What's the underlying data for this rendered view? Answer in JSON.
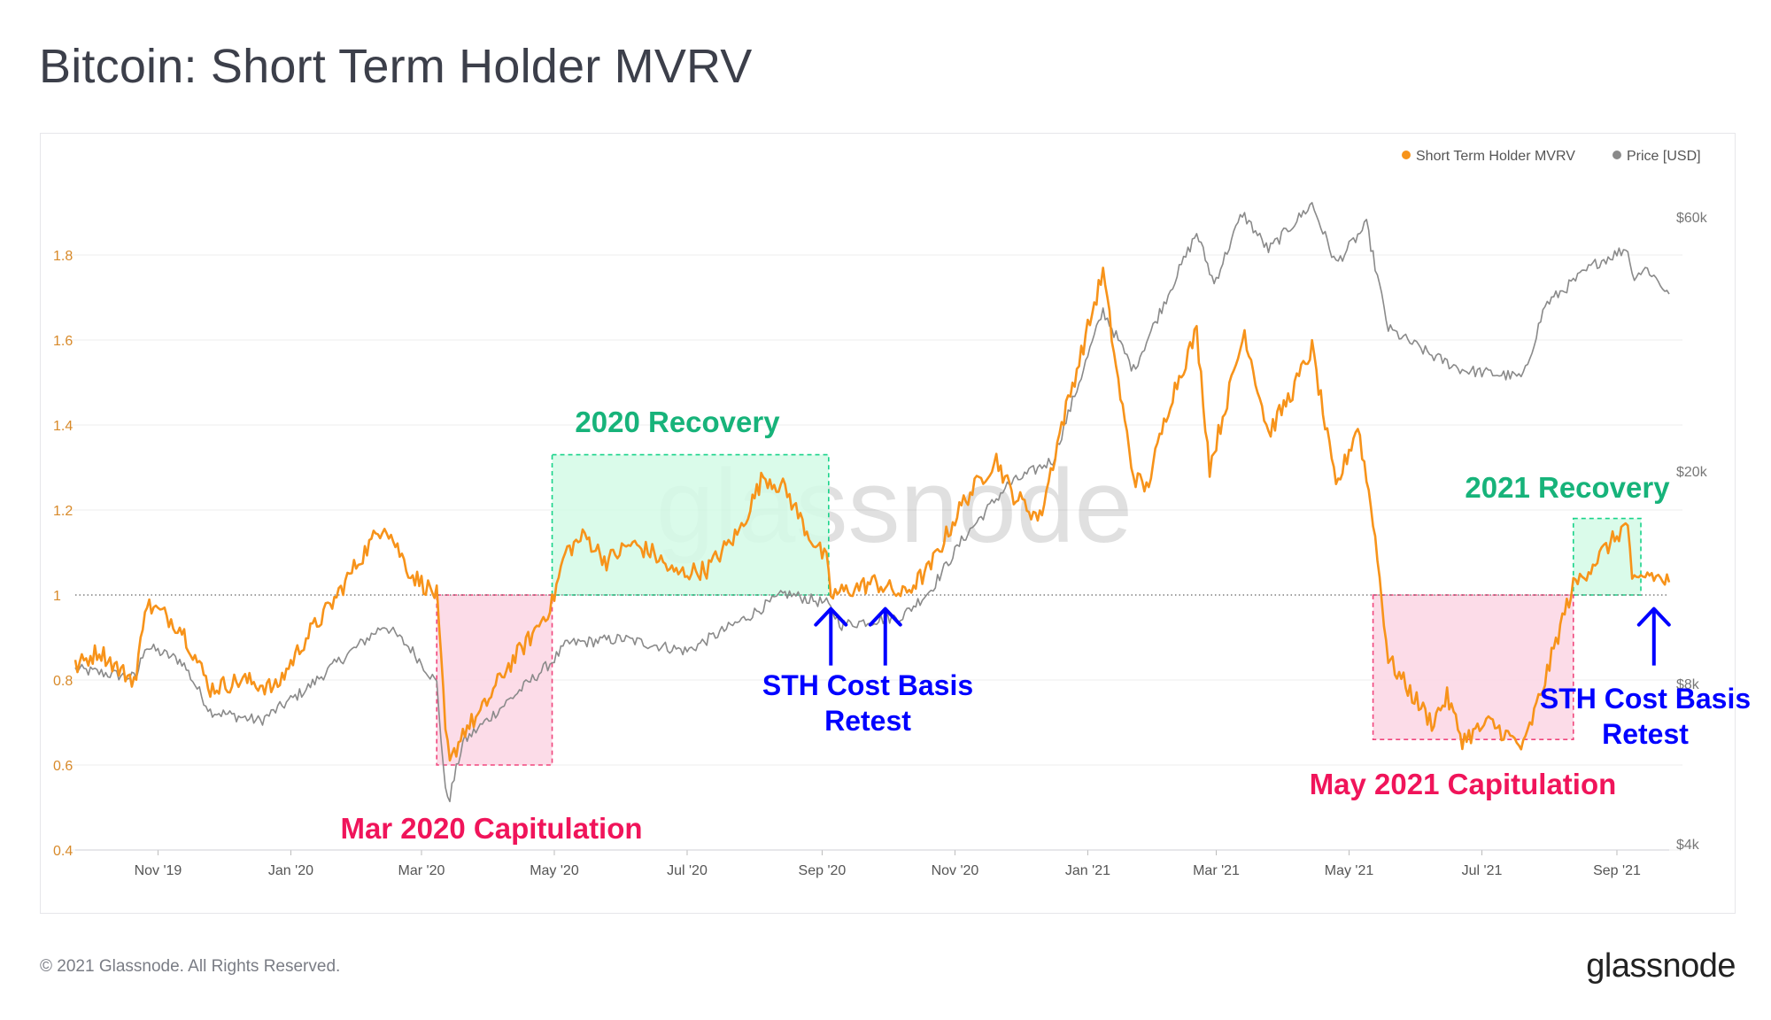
{
  "page": {
    "title": "Bitcoin: Short Term Holder MVRV",
    "copyright": "© 2021 Glassnode. All Rights Reserved.",
    "logo": "glassnode",
    "watermark": "glassnode"
  },
  "colors": {
    "mvrv": "#f7931a",
    "price": "#8a8a8a",
    "recovery_fill": "#d4fae6",
    "recovery_stroke": "#19d38a",
    "recovery_text": "#17b37a",
    "capitulation_fill": "#fcd8e6",
    "capitulation_stroke": "#f0467d",
    "capitulation_text": "#f0145a",
    "arrow": "#0000ff",
    "axis_left": "#d88a2a",
    "axis_right": "#777777",
    "grid": "#ececec"
  },
  "chart_data": {
    "type": "line",
    "x_ticks": [
      "Nov '19",
      "Jan '20",
      "Mar '20",
      "May '20",
      "Jul '20",
      "Sep '20",
      "Nov '20",
      "Jan '21",
      "Mar '21",
      "May '21",
      "Jul '21",
      "Sep '21"
    ],
    "x_range": [
      "2019-09-24",
      "2021-09-25"
    ],
    "y_left": {
      "ticks": [
        "0.4",
        "0.6",
        "0.8",
        "1",
        "1.2",
        "1.4",
        "1.6",
        "1.8"
      ],
      "range": [
        0.4,
        1.9
      ],
      "reference_line": 1
    },
    "y_right": {
      "scale": "log",
      "ticks": [
        "$4k",
        "$8k",
        "$20k",
        "$60k"
      ],
      "tick_values": [
        4000,
        8000,
        20000,
        60000
      ]
    },
    "legend": {
      "position": "top-right"
    },
    "series": [
      {
        "name": "Short Term Holder MVRV",
        "axis": "left",
        "points": [
          [
            "2019-09-24",
            0.83
          ],
          [
            "2019-10-05",
            0.87
          ],
          [
            "2019-10-15",
            0.82
          ],
          [
            "2019-10-22",
            0.8
          ],
          [
            "2019-10-26",
            0.98
          ],
          [
            "2019-11-05",
            0.95
          ],
          [
            "2019-11-12",
            0.92
          ],
          [
            "2019-11-25",
            0.78
          ],
          [
            "2019-12-10",
            0.8
          ],
          [
            "2019-12-25",
            0.78
          ],
          [
            "2020-01-08",
            0.9
          ],
          [
            "2020-01-20",
            0.98
          ],
          [
            "2020-02-01",
            1.08
          ],
          [
            "2020-02-13",
            1.17
          ],
          [
            "2020-02-25",
            1.05
          ],
          [
            "2020-03-08",
            1.0
          ],
          [
            "2020-03-12",
            0.68
          ],
          [
            "2020-03-14",
            0.6
          ],
          [
            "2020-03-20",
            0.68
          ],
          [
            "2020-03-28",
            0.72
          ],
          [
            "2020-04-08",
            0.82
          ],
          [
            "2020-04-20",
            0.9
          ],
          [
            "2020-04-30",
            0.98
          ],
          [
            "2020-05-06",
            1.1
          ],
          [
            "2020-05-15",
            1.14
          ],
          [
            "2020-05-25",
            1.08
          ],
          [
            "2020-06-05",
            1.12
          ],
          [
            "2020-06-15",
            1.1
          ],
          [
            "2020-06-25",
            1.05
          ],
          [
            "2020-07-10",
            1.06
          ],
          [
            "2020-07-25",
            1.15
          ],
          [
            "2020-08-05",
            1.28
          ],
          [
            "2020-08-15",
            1.25
          ],
          [
            "2020-08-25",
            1.15
          ],
          [
            "2020-09-03",
            1.08
          ],
          [
            "2020-09-05",
            1.0
          ],
          [
            "2020-09-12",
            1.01
          ],
          [
            "2020-09-25",
            1.03
          ],
          [
            "2020-10-08",
            1.0
          ],
          [
            "2020-10-20",
            1.06
          ],
          [
            "2020-11-05",
            1.22
          ],
          [
            "2020-11-20",
            1.32
          ],
          [
            "2020-11-27",
            1.24
          ],
          [
            "2020-12-10",
            1.18
          ],
          [
            "2020-12-20",
            1.4
          ],
          [
            "2020-12-28",
            1.55
          ],
          [
            "2021-01-08",
            1.76
          ],
          [
            "2021-01-15",
            1.5
          ],
          [
            "2021-01-22",
            1.28
          ],
          [
            "2021-01-28",
            1.25
          ],
          [
            "2021-02-08",
            1.46
          ],
          [
            "2021-02-20",
            1.62
          ],
          [
            "2021-02-26",
            1.3
          ],
          [
            "2021-03-08",
            1.5
          ],
          [
            "2021-03-14",
            1.62
          ],
          [
            "2021-03-25",
            1.38
          ],
          [
            "2021-04-05",
            1.48
          ],
          [
            "2021-04-14",
            1.58
          ],
          [
            "2021-04-25",
            1.25
          ],
          [
            "2021-05-05",
            1.4
          ],
          [
            "2021-05-12",
            1.18
          ],
          [
            "2021-05-19",
            0.85
          ],
          [
            "2021-05-28",
            0.78
          ],
          [
            "2021-06-08",
            0.7
          ],
          [
            "2021-06-15",
            0.76
          ],
          [
            "2021-06-22",
            0.66
          ],
          [
            "2021-07-05",
            0.7
          ],
          [
            "2021-07-20",
            0.64
          ],
          [
            "2021-07-30",
            0.8
          ],
          [
            "2021-08-08",
            0.96
          ],
          [
            "2021-08-12",
            1.02
          ],
          [
            "2021-08-22",
            1.08
          ],
          [
            "2021-09-06",
            1.17
          ],
          [
            "2021-09-08",
            1.02
          ],
          [
            "2021-09-15",
            1.05
          ],
          [
            "2021-09-25",
            1.03
          ]
        ]
      },
      {
        "name": "Price [USD]",
        "axis": "right",
        "points": [
          [
            "2019-09-24",
            8500
          ],
          [
            "2019-10-22",
            8200
          ],
          [
            "2019-10-26",
            9400
          ],
          [
            "2019-11-12",
            8800
          ],
          [
            "2019-11-25",
            7100
          ],
          [
            "2019-12-18",
            6800
          ],
          [
            "2020-01-08",
            7800
          ],
          [
            "2020-01-20",
            8600
          ],
          [
            "2020-02-13",
            10300
          ],
          [
            "2020-02-25",
            9300
          ],
          [
            "2020-03-08",
            8000
          ],
          [
            "2020-03-12",
            5000
          ],
          [
            "2020-03-14",
            4900
          ],
          [
            "2020-03-20",
            6200
          ],
          [
            "2020-04-08",
            7300
          ],
          [
            "2020-04-30",
            8800
          ],
          [
            "2020-05-07",
            9500
          ],
          [
            "2020-06-01",
            9700
          ],
          [
            "2020-07-01",
            9200
          ],
          [
            "2020-07-26",
            10500
          ],
          [
            "2020-08-15",
            11800
          ],
          [
            "2020-09-03",
            11300
          ],
          [
            "2020-09-10",
            10300
          ],
          [
            "2020-10-08",
            10700
          ],
          [
            "2020-10-21",
            12000
          ],
          [
            "2020-11-05",
            15000
          ],
          [
            "2020-11-25",
            18800
          ],
          [
            "2020-12-16",
            21000
          ],
          [
            "2021-01-08",
            40000
          ],
          [
            "2021-01-22",
            31000
          ],
          [
            "2021-02-08",
            44000
          ],
          [
            "2021-02-20",
            56000
          ],
          [
            "2021-02-28",
            45000
          ],
          [
            "2021-03-13",
            61000
          ],
          [
            "2021-03-25",
            52000
          ],
          [
            "2021-04-14",
            63500
          ],
          [
            "2021-04-25",
            49000
          ],
          [
            "2021-05-09",
            58000
          ],
          [
            "2021-05-19",
            37000
          ],
          [
            "2021-06-08",
            33000
          ],
          [
            "2021-06-22",
            31000
          ],
          [
            "2021-07-20",
            30000
          ],
          [
            "2021-07-30",
            41000
          ],
          [
            "2021-08-22",
            49000
          ],
          [
            "2021-09-06",
            52500
          ],
          [
            "2021-09-08",
            46500
          ],
          [
            "2021-09-15",
            48000
          ],
          [
            "2021-09-25",
            43000
          ]
        ]
      }
    ],
    "annotations": [
      {
        "label": "2020 Recovery",
        "kind": "recovery",
        "x0": "2020-04-30",
        "x1": "2020-09-04",
        "y0": 1.0,
        "y1": 1.33
      },
      {
        "label": "2021 Recovery",
        "kind": "recovery",
        "x0": "2021-08-12",
        "x1": "2021-09-12",
        "y0": 1.0,
        "y1": 1.18
      },
      {
        "label": "Mar 2020 Capitulation",
        "kind": "capitulation",
        "x0": "2020-03-08",
        "x1": "2020-04-30",
        "y0": 0.6,
        "y1": 1.0
      },
      {
        "label": "May 2021 Capitulation",
        "kind": "capitulation",
        "x0": "2021-05-12",
        "x1": "2021-08-12",
        "y0": 0.66,
        "y1": 1.0
      }
    ],
    "arrows": [
      {
        "label": "STH Cost Basis",
        "label2": "Retest",
        "dates": [
          "2020-09-05",
          "2020-09-30"
        ],
        "value": 0.98
      },
      {
        "label": "STH Cost Basis",
        "label2": "Retest",
        "dates": [
          "2021-09-18"
        ],
        "value": 0.98
      }
    ]
  }
}
